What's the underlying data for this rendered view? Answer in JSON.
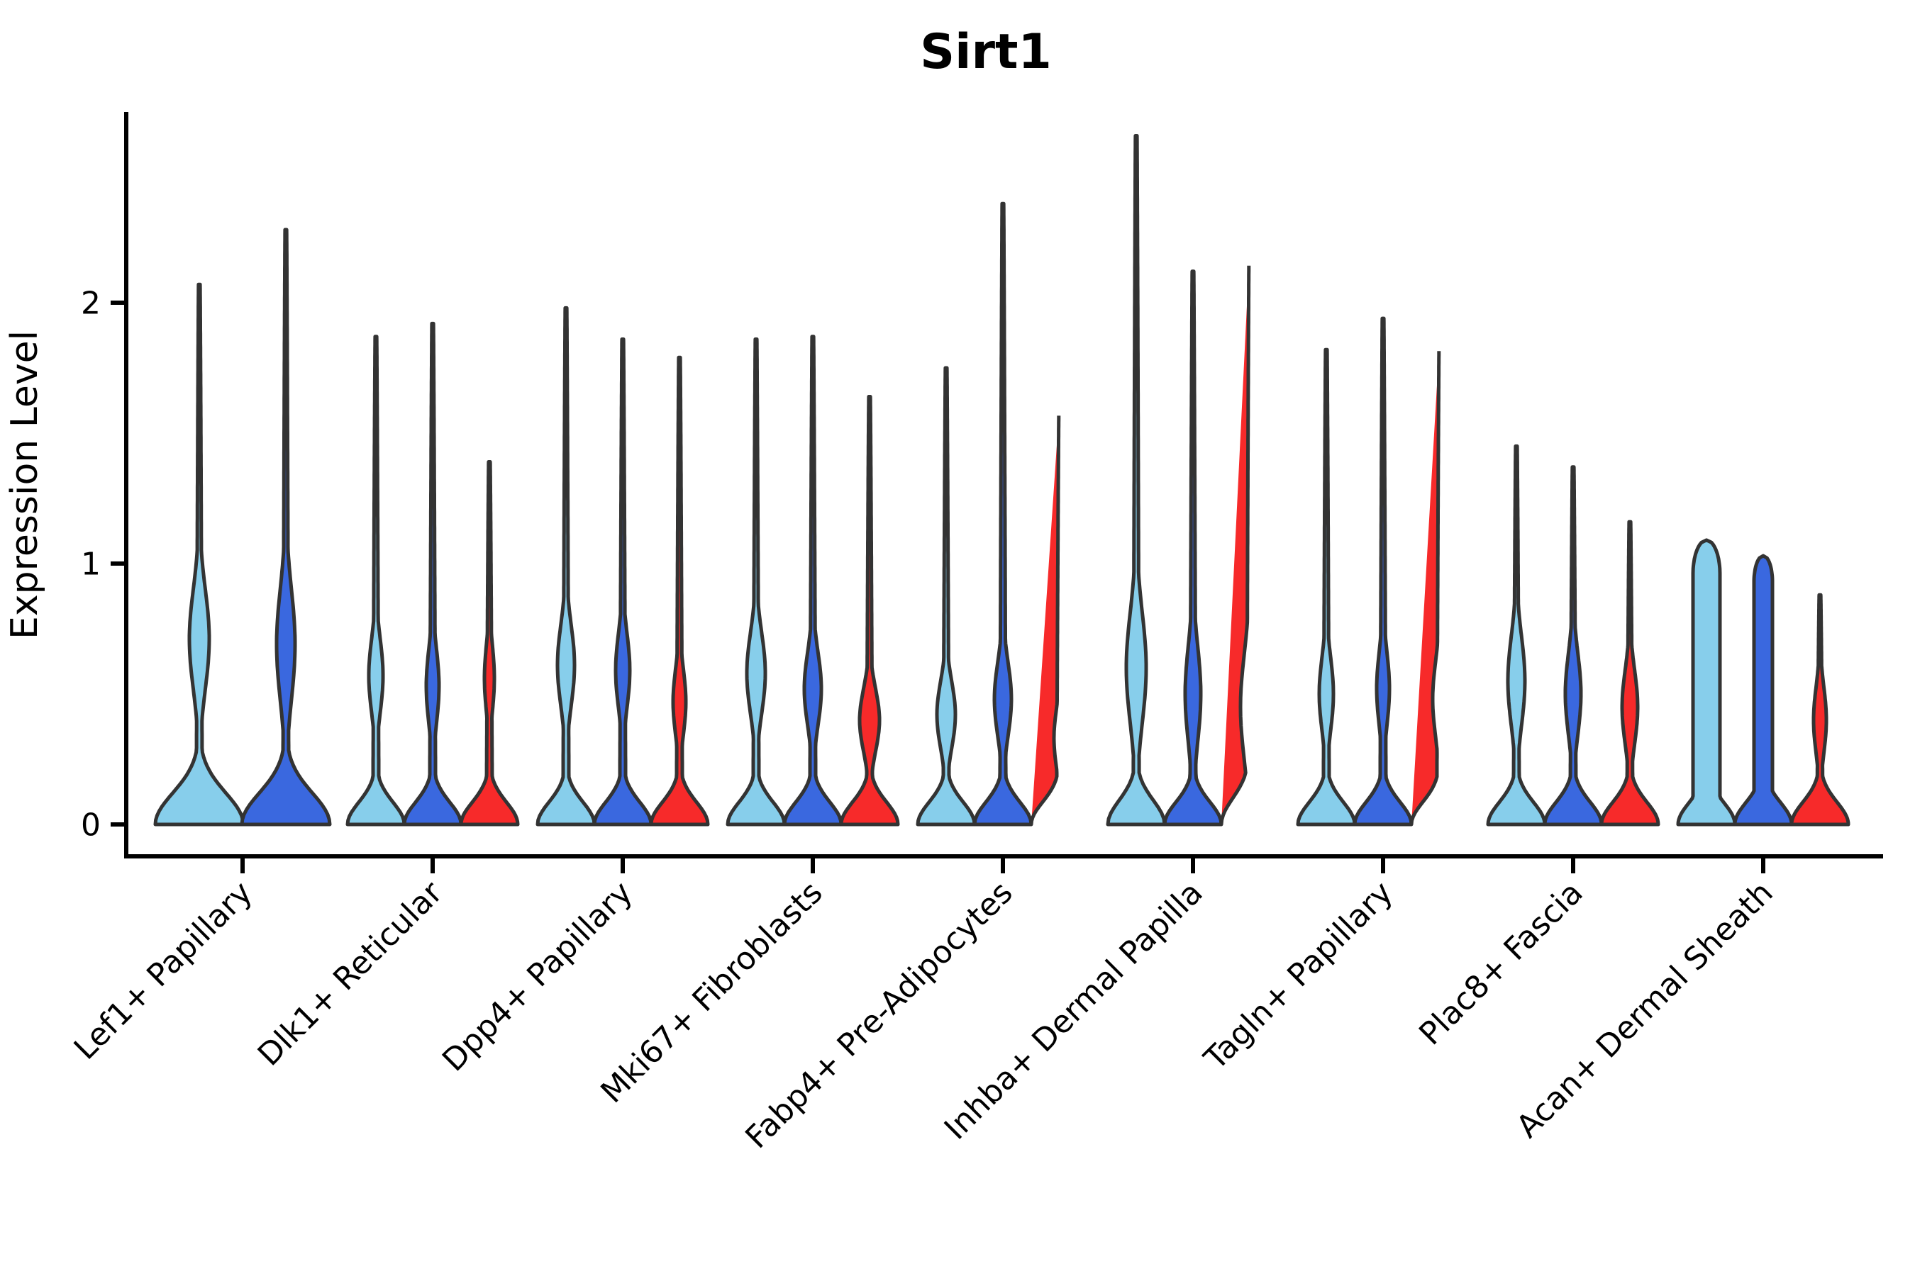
{
  "title": "Sirt1",
  "ylabel": "Expression Level",
  "chart_data": {
    "type": "violin",
    "title": "Sirt1",
    "xlabel": "",
    "ylabel": "Expression Level",
    "y_ticks": [
      0,
      1,
      2
    ],
    "ylim": [
      0,
      2.85
    ],
    "grid": false,
    "legend": "none",
    "outline_color": "#333333",
    "series_colors": {
      "light_blue": "#87CEEB",
      "dark_blue": "#3A68DF",
      "red": "#F72A2A"
    },
    "categories": [
      "Lef1+ Papillary",
      "Dlk1+ Reticular",
      "Dpp4+ Papillary",
      "Mki67+ Fibroblasts",
      "Fabp4+ Pre-Adipocytes",
      "Inhba+ Dermal Papilla",
      "Tagln+ Papillary",
      "Plac8+ Fascia",
      "Acan+ Dermal Sheath"
    ],
    "groups": [
      {
        "category": "Lef1+ Papillary",
        "violins": [
          {
            "series": "light_blue",
            "offset": -61,
            "max": 2.07,
            "base_hw": 62,
            "base_s": 0.17,
            "shape": "needle",
            "bulge_v": 0.71,
            "bulge_hw": 14,
            "bulge_s": 0.27
          },
          {
            "series": "dark_blue",
            "offset": 61,
            "max": 2.28,
            "base_hw": 62,
            "base_s": 0.17,
            "shape": "needle",
            "bulge_v": 0.69,
            "bulge_hw": 13,
            "bulge_s": 0.3
          }
        ]
      },
      {
        "category": "Dlk1+ Reticular",
        "violins": [
          {
            "series": "light_blue",
            "offset": -80,
            "max": 1.87,
            "base_hw": 40,
            "base_s": 0.12,
            "shape": "needle",
            "bulge_v": 0.57,
            "bulge_hw": 10,
            "bulge_s": 0.2
          },
          {
            "series": "dark_blue",
            "offset": 0,
            "max": 1.92,
            "base_hw": 40,
            "base_s": 0.12,
            "shape": "needle",
            "bulge_v": 0.53,
            "bulge_hw": 9,
            "bulge_s": 0.2
          },
          {
            "series": "red",
            "offset": 80,
            "max": 1.39,
            "base_hw": 40,
            "base_s": 0.12,
            "shape": "needle",
            "bulge_v": 0.56,
            "bulge_hw": 7,
            "bulge_s": 0.18
          }
        ]
      },
      {
        "category": "Dpp4+ Papillary",
        "violins": [
          {
            "series": "light_blue",
            "offset": -80,
            "max": 1.98,
            "base_hw": 40,
            "base_s": 0.12,
            "shape": "needle",
            "bulge_v": 0.61,
            "bulge_hw": 12,
            "bulge_s": 0.22
          },
          {
            "series": "dark_blue",
            "offset": 0,
            "max": 1.86,
            "base_hw": 40,
            "base_s": 0.12,
            "shape": "needle",
            "bulge_v": 0.59,
            "bulge_hw": 10,
            "bulge_s": 0.2
          },
          {
            "series": "red",
            "offset": 80,
            "max": 1.79,
            "base_hw": 40,
            "base_s": 0.12,
            "shape": "needle",
            "bulge_v": 0.47,
            "bulge_hw": 9,
            "bulge_s": 0.18
          }
        ]
      },
      {
        "category": "Mki67+ Fibroblasts",
        "violins": [
          {
            "series": "light_blue",
            "offset": -80,
            "max": 1.86,
            "base_hw": 40,
            "base_s": 0.12,
            "shape": "needle",
            "bulge_v": 0.58,
            "bulge_hw": 13,
            "bulge_s": 0.22
          },
          {
            "series": "dark_blue",
            "offset": 0,
            "max": 1.87,
            "base_hw": 40,
            "base_s": 0.12,
            "shape": "needle",
            "bulge_v": 0.52,
            "bulge_hw": 12,
            "bulge_s": 0.2
          },
          {
            "series": "red",
            "offset": 80,
            "max": 1.64,
            "base_hw": 40,
            "base_s": 0.12,
            "shape": "needle",
            "bulge_v": 0.4,
            "bulge_hw": 14,
            "bulge_s": 0.17
          }
        ]
      },
      {
        "category": "Fabp4+ Pre-Adipocytes",
        "violins": [
          {
            "series": "light_blue",
            "offset": -80,
            "max": 1.75,
            "base_hw": 40,
            "base_s": 0.12,
            "shape": "needle",
            "bulge_v": 0.42,
            "bulge_hw": 13,
            "bulge_s": 0.18
          },
          {
            "series": "dark_blue",
            "offset": 0,
            "max": 2.38,
            "base_hw": 40,
            "base_s": 0.12,
            "shape": "needle",
            "bulge_v": 0.48,
            "bulge_hw": 12,
            "bulge_s": 0.2
          },
          {
            "series": "red",
            "offset": 80,
            "max": 1.58,
            "base_hw": 40,
            "base_s": 0.12,
            "shape": "needle",
            "bulge_v": 0.33,
            "bulge_hw": 8,
            "bulge_s": 0.15
          }
        ]
      },
      {
        "category": "Inhba+ Dermal Papilla",
        "violins": [
          {
            "series": "light_blue",
            "offset": -80,
            "max": 2.64,
            "base_hw": 40,
            "base_s": 0.13,
            "shape": "needle",
            "bulge_v": 0.6,
            "bulge_hw": 14,
            "bulge_s": 0.3
          },
          {
            "series": "dark_blue",
            "offset": 0,
            "max": 2.12,
            "base_hw": 40,
            "base_s": 0.12,
            "shape": "needle",
            "bulge_v": 0.5,
            "bulge_hw": 11,
            "bulge_s": 0.26
          },
          {
            "series": "red",
            "offset": 80,
            "max": 2.16,
            "base_hw": 40,
            "base_s": 0.14,
            "shape": "needle",
            "bulge_v": 0.45,
            "bulge_hw": 13,
            "bulge_s": 0.28
          }
        ]
      },
      {
        "category": "Tagln+ Papillary",
        "violins": [
          {
            "series": "light_blue",
            "offset": -80,
            "max": 1.82,
            "base_hw": 40,
            "base_s": 0.12,
            "shape": "needle",
            "bulge_v": 0.5,
            "bulge_hw": 10,
            "bulge_s": 0.2
          },
          {
            "series": "dark_blue",
            "offset": 0,
            "max": 1.94,
            "base_hw": 40,
            "base_s": 0.12,
            "shape": "needle",
            "bulge_v": 0.52,
            "bulge_hw": 9,
            "bulge_s": 0.2
          },
          {
            "series": "red",
            "offset": 80,
            "max": 1.83,
            "base_hw": 40,
            "base_s": 0.12,
            "shape": "needle",
            "bulge_v": 0.48,
            "bulge_hw": 10,
            "bulge_s": 0.2
          }
        ]
      },
      {
        "category": "Plac8+ Fascia",
        "violins": [
          {
            "series": "light_blue",
            "offset": -80,
            "max": 1.45,
            "base_hw": 40,
            "base_s": 0.12,
            "shape": "needle",
            "bulge_v": 0.55,
            "bulge_hw": 12,
            "bulge_s": 0.24
          },
          {
            "series": "dark_blue",
            "offset": 0,
            "max": 1.37,
            "base_hw": 40,
            "base_s": 0.12,
            "shape": "needle",
            "bulge_v": 0.5,
            "bulge_hw": 11,
            "bulge_s": 0.22
          },
          {
            "series": "red",
            "offset": 80,
            "max": 1.16,
            "base_hw": 40,
            "base_s": 0.12,
            "shape": "needle",
            "bulge_v": 0.45,
            "bulge_hw": 11,
            "bulge_s": 0.2
          }
        ]
      },
      {
        "category": "Acan+ Dermal Sheath",
        "violins": [
          {
            "series": "light_blue",
            "offset": -80,
            "max": 1.09,
            "base_hw": 40,
            "base_s": 0.12,
            "shape": "column",
            "col_hw": 19,
            "cap": 0.13
          },
          {
            "series": "dark_blue",
            "offset": 0,
            "max": 1.03,
            "base_hw": 40,
            "base_s": 0.12,
            "shape": "column",
            "col_hw": 13,
            "cap": 0.1
          },
          {
            "series": "red",
            "offset": 80,
            "max": 0.88,
            "base_hw": 40,
            "base_s": 0.12,
            "shape": "needle",
            "bulge_v": 0.4,
            "bulge_hw": 9,
            "bulge_s": 0.18
          }
        ]
      }
    ]
  }
}
